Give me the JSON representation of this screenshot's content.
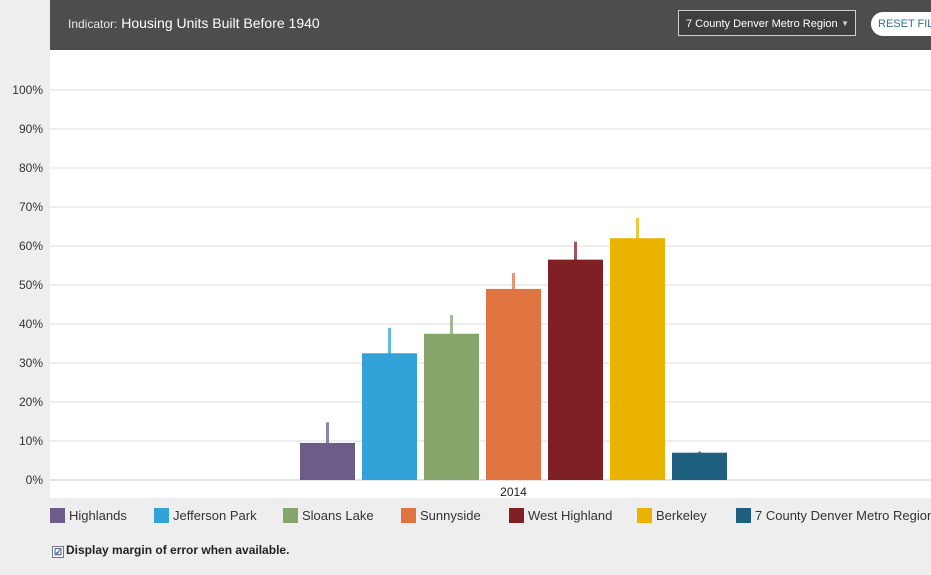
{
  "header": {
    "indicator_label": "Indicator:",
    "indicator_value": "Housing Units Built Before 1940",
    "region_select": "7 County Denver Metro Region",
    "region_caret": "▼",
    "reset_label": "RESET FILT"
  },
  "chart_data": {
    "type": "bar",
    "categories": [
      "2014"
    ],
    "ylim": [
      0,
      100
    ],
    "yticks": [
      0,
      10,
      20,
      30,
      40,
      50,
      60,
      70,
      80,
      90,
      100
    ],
    "ytick_labels": [
      "0%",
      "10%",
      "20%",
      "30%",
      "40%",
      "50%",
      "60%",
      "70%",
      "80%",
      "90%",
      "100%"
    ],
    "grid": true,
    "legend_position": "bottom",
    "series": [
      {
        "name": "Highlands",
        "values": [
          9.5
        ],
        "error": [
          5.3
        ],
        "color": "#6b5c8a"
      },
      {
        "name": "Jefferson Park",
        "values": [
          32.5
        ],
        "error": [
          6.5
        ],
        "color": "#33a2d8"
      },
      {
        "name": "Sloans Lake",
        "values": [
          37.5
        ],
        "error": [
          4.8
        ],
        "color": "#86a56b"
      },
      {
        "name": "Sunnyside",
        "values": [
          49
        ],
        "error": [
          4.1
        ],
        "color": "#df7440"
      },
      {
        "name": "West Highland",
        "values": [
          56.5
        ],
        "error": [
          4.6
        ],
        "color": "#7f2024"
      },
      {
        "name": "Berkeley",
        "values": [
          62
        ],
        "error": [
          5.2
        ],
        "color": "#eab300"
      },
      {
        "name": "7 County Denver Metro Region",
        "values": [
          7
        ],
        "error": [
          0.3
        ],
        "color": "#1f5f80"
      }
    ]
  },
  "legend_items": [
    {
      "label": "Highlands"
    },
    {
      "label": "Jefferson Park"
    },
    {
      "label": "Sloans Lake"
    },
    {
      "label": "Sunnyside"
    },
    {
      "label": "West Highland"
    },
    {
      "label": "Berkeley"
    },
    {
      "label": "7 County Denver Metro Region"
    }
  ],
  "moe": {
    "checkbox": "☑",
    "label": "Display margin of error when available."
  }
}
